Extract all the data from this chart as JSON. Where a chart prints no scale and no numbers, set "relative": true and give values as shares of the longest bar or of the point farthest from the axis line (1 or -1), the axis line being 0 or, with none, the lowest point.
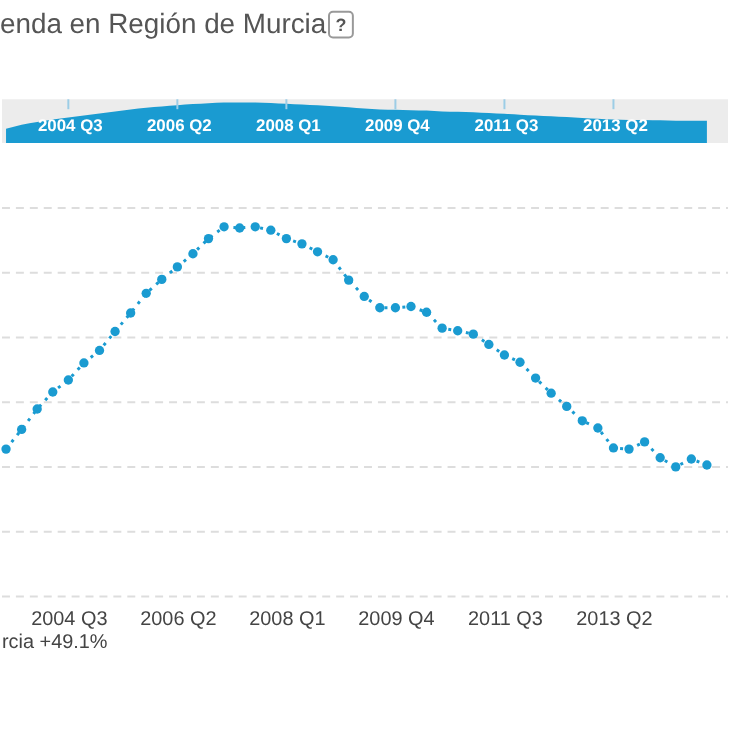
{
  "chart_data": [
    {
      "type": "area",
      "title": "enda en Región de Murcia",
      "annotations": [
        "?"
      ],
      "relative": true,
      "categories": [
        null,
        null,
        null,
        null,
        "2004 Q3",
        null,
        null,
        null,
        null,
        null,
        null,
        "2006 Q2",
        null,
        null,
        null,
        null,
        null,
        null,
        "2008 Q1",
        null,
        null,
        null,
        null,
        null,
        null,
        "2009 Q4",
        null,
        null,
        null,
        null,
        null,
        null,
        "2011 Q3",
        null,
        null,
        null,
        null,
        null,
        null,
        "2013 Q2",
        null,
        null,
        null,
        null,
        null,
        null
      ],
      "series": [
        {
          "color": "#1a9bd1",
          "values": [
            0.35,
            0.45,
            0.52,
            0.58,
            0.63,
            0.68,
            0.73,
            0.78,
            0.83,
            0.87,
            0.9,
            0.93,
            0.96,
            0.98,
            1.0,
            1.0,
            1.0,
            0.99,
            0.97,
            0.95,
            0.93,
            0.91,
            0.88,
            0.85,
            0.83,
            0.82,
            0.81,
            0.8,
            0.78,
            0.77,
            0.76,
            0.74,
            0.72,
            0.7,
            0.68,
            0.66,
            0.64,
            0.62,
            0.6,
            0.58,
            0.57,
            0.57,
            0.56,
            0.55,
            0.55,
            0.55
          ]
        }
      ]
    },
    {
      "type": "line",
      "relative": true,
      "grid": "y",
      "marker": "circle",
      "line_style": "dotted",
      "annotations": [
        "rcia +49.1%"
      ],
      "categories": [
        null,
        null,
        null,
        null,
        "2004 Q3",
        null,
        null,
        null,
        null,
        null,
        null,
        "2006 Q2",
        null,
        null,
        null,
        null,
        null,
        null,
        "2008 Q1",
        null,
        null,
        null,
        null,
        null,
        null,
        "2009 Q4",
        null,
        null,
        null,
        null,
        null,
        null,
        "2011 Q3",
        null,
        null,
        null,
        null,
        null,
        null,
        "2013 Q2",
        null,
        null,
        null,
        null,
        null,
        null
      ],
      "series": [
        {
          "color": "#1a9bd1",
          "values": [
            0.074,
            0.156,
            0.241,
            0.312,
            0.362,
            0.433,
            0.485,
            0.564,
            0.641,
            0.723,
            0.781,
            0.833,
            0.888,
            0.951,
            1.0,
            0.995,
            1.0,
            0.986,
            0.951,
            0.929,
            0.896,
            0.863,
            0.778,
            0.71,
            0.663,
            0.663,
            0.668,
            0.644,
            0.578,
            0.567,
            0.553,
            0.51,
            0.466,
            0.436,
            0.37,
            0.307,
            0.252,
            0.192,
            0.162,
            0.079,
            0.074,
            0.104,
            0.038,
            0,
            0.033,
            0.008
          ]
        }
      ]
    }
  ]
}
